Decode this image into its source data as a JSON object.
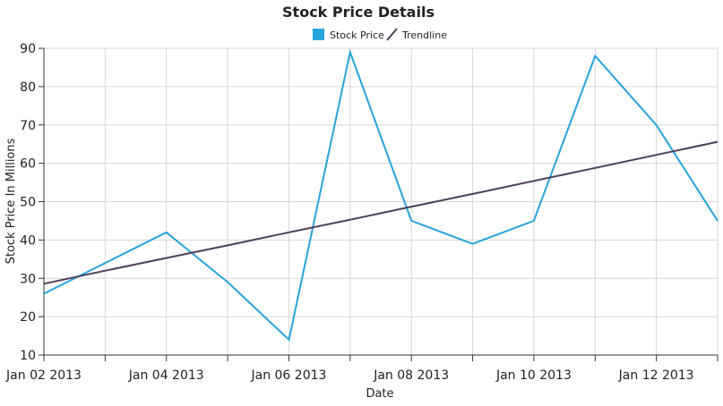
{
  "chart_data": {
    "type": "line",
    "title": "Stock Price Details",
    "xlabel": "Date",
    "ylabel": "Stock Price In Millions",
    "ylim": [
      10,
      90
    ],
    "yticks": [
      10,
      20,
      30,
      40,
      50,
      60,
      70,
      80,
      90
    ],
    "x": [
      "2013-01-02",
      "2013-01-03",
      "2013-01-04",
      "2013-01-05",
      "2013-01-06",
      "2013-01-07",
      "2013-01-08",
      "2013-01-09",
      "2013-01-10",
      "2013-01-11",
      "2013-01-12",
      "2013-01-13"
    ],
    "xtick_labels": [
      "Jan 02 2013",
      "Jan 04 2013",
      "Jan 06 2013",
      "Jan 08 2013",
      "Jan 10 2013",
      "Jan 12 2013"
    ],
    "grid": true,
    "legend_position": "top-center",
    "series": [
      {
        "name": "Stock Price",
        "color": "#27a3dd",
        "values": [
          26,
          34,
          42,
          29,
          14,
          89,
          45,
          39,
          45,
          88,
          70,
          45
        ]
      },
      {
        "name": "Trendline",
        "color": "#4e3e5a",
        "values": [
          28.6,
          32.0,
          35.3,
          38.6,
          42.0,
          45.3,
          48.7,
          52.0,
          55.4,
          58.8,
          62.2,
          65.6
        ]
      }
    ]
  }
}
